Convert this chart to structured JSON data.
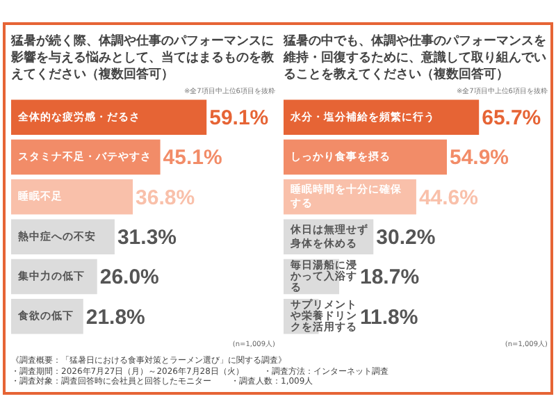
{
  "chart_data": [
    {
      "type": "bar",
      "orientation": "horizontal",
      "title": "猛暑が続く際、体調や仕事のパフォーマンスに影響を与える悩みとして、当てはまるものを教えてください（複数回答可）",
      "categories": [
        "全体的な疲労感・だるさ",
        "スタミナ不足・バテやすさ",
        "睡眠不足",
        "熱中症への不安",
        "集中力の低下",
        "食欲の低下"
      ],
      "values": [
        59.1,
        45.1,
        36.8,
        31.3,
        26.0,
        21.8
      ],
      "value_labels": [
        "59.1%",
        "45.1%",
        "36.8%",
        "31.3%",
        "26.0%",
        "21.8%"
      ],
      "colors": [
        "#e66435",
        "#f28c68",
        "#f9c0aa",
        "#dcdcdc",
        "#dcdcdc",
        "#dcdcdc"
      ],
      "annotations": [
        "※全7項目中上位6項目を抜粋",
        "(n=1,009人)",
        "《調査概要：「猛暑日における食事対策とラーメン選び」に関する調査》",
        "・調査期間：2026年7月27日（月）～2026年7月28日（火）",
        "・調査方法：インターネット調査",
        "・調査対象：調査回答時に会社員と回答したモニター",
        "・調査人数：1,009人"
      ]
    },
    {
      "type": "bar",
      "orientation": "horizontal",
      "title": "猛暑の中でも、体調や仕事のパフォーマンスを維持・回復するために、意識して取り組んでいることを教えてください（複数回答可）",
      "categories": [
        "水分・塩分補給を頻繁に行う",
        "しっかり食事を摂る",
        "睡眠時間を十分に確保する",
        "休日は無理せず身体を休める",
        "毎日湯船に浸かって入浴する",
        "サプリメントや栄養ドリンクを活用する"
      ],
      "values": [
        65.7,
        54.9,
        44.6,
        30.2,
        18.7,
        11.8
      ],
      "value_labels": [
        "65.7%",
        "54.9%",
        "44.6%",
        "30.2%",
        "18.7%",
        "11.8%"
      ],
      "colors": [
        "#e66435",
        "#f28c68",
        "#f9c0aa",
        "#dcdcdc",
        "#dcdcdc",
        "#dcdcdc"
      ],
      "annotations": [
        "※全7項目中上位6項目を抜粋",
        "(n=1,009人)"
      ]
    }
  ]
}
